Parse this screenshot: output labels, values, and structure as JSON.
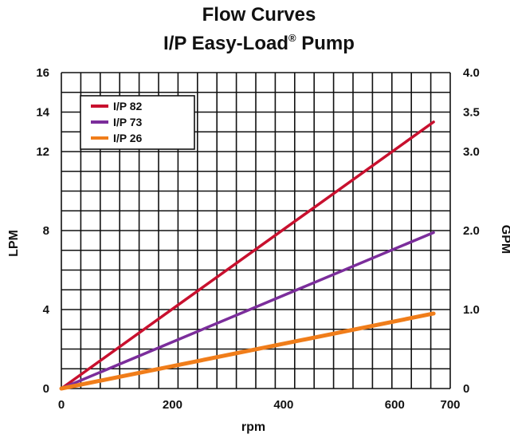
{
  "chart_data": {
    "type": "line",
    "title_line1": "Flow Curves",
    "title_line2": "I/P Easy-Load",
    "title_reg": "®",
    "title_line2_suffix": " Pump",
    "xlabel": "rpm",
    "ylabel": "LPM",
    "ylabel_right": "GPM",
    "xlim": [
      0,
      700
    ],
    "ylim": [
      0,
      16
    ],
    "ylim_right": [
      0,
      4.0
    ],
    "x_ticks": [
      "0",
      "200",
      "400",
      "600",
      "700"
    ],
    "y_ticks": [
      "0",
      "4",
      "8",
      "12",
      "14",
      "16"
    ],
    "y_right_ticks": [
      "0",
      "1.0",
      "2.0",
      "3.0",
      "3.5",
      "4.0"
    ],
    "grid": true,
    "legend_position": "top-left",
    "series": [
      {
        "name": "I/P 82",
        "color": "#c8102e",
        "x": [
          0,
          670
        ],
        "y": [
          0,
          13.5
        ]
      },
      {
        "name": "I/P 73",
        "color": "#7b2d9b",
        "x": [
          0,
          670
        ],
        "y": [
          0,
          7.9
        ]
      },
      {
        "name": "I/P 26",
        "color": "#f07d1a",
        "x": [
          0,
          670
        ],
        "y": [
          0,
          3.8
        ]
      }
    ]
  }
}
